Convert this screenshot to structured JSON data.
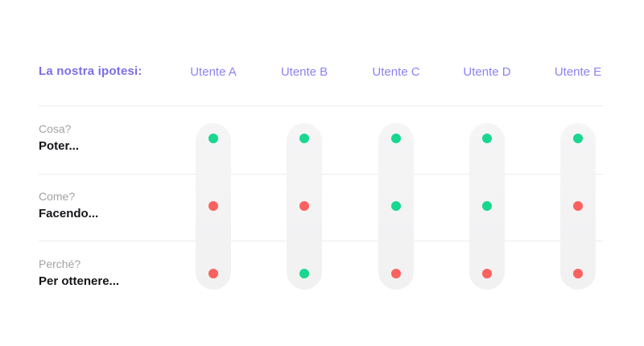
{
  "header": {
    "title": "La nostra ipotesi:"
  },
  "columns": [
    {
      "label": "Utente A"
    },
    {
      "label": "Utente B"
    },
    {
      "label": "Utente C"
    },
    {
      "label": "Utente D"
    },
    {
      "label": "Utente E"
    }
  ],
  "rows": [
    {
      "question": "Cosa?",
      "answer": "Poter...",
      "statuses": [
        "green",
        "green",
        "green",
        "green",
        "green"
      ]
    },
    {
      "question": "Come?",
      "answer": "Facendo...",
      "statuses": [
        "red",
        "red",
        "green",
        "green",
        "red"
      ]
    },
    {
      "question": "Perché?",
      "answer": "Per ottenere...",
      "statuses": [
        "red",
        "green",
        "red",
        "red",
        "red"
      ]
    }
  ],
  "colors": {
    "accent": "#7b6ee9",
    "column-header": "#8c83f2",
    "positive": "#18d78f",
    "negative": "#fa625f",
    "question": "#a3a3a7",
    "answer": "#15151a",
    "divider": "#ececec",
    "pill": "#f3f3f4",
    "background": "#ffffff"
  }
}
